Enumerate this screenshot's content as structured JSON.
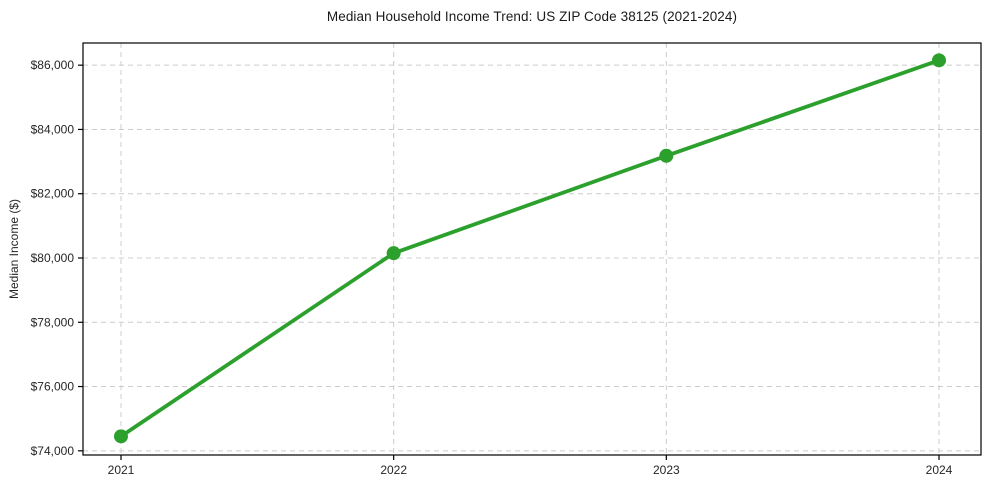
{
  "chart_data": {
    "type": "line",
    "title": "Median Household Income Trend: US ZIP Code 38125 (2021-2024)",
    "xlabel": "",
    "ylabel": "Median Income ($)",
    "categories": [
      "2021",
      "2022",
      "2023",
      "2024"
    ],
    "values": [
      74450,
      80150,
      83180,
      86150
    ],
    "yticks": [
      74000,
      76000,
      78000,
      80000,
      82000,
      84000,
      86000
    ],
    "ytick_labels": [
      "$74,000",
      "$76,000",
      "$78,000",
      "$80,000",
      "$82,000",
      "$84,000",
      "$86,000"
    ],
    "ylim": [
      73870,
      86690
    ],
    "grid": true,
    "grid_style": "dashed",
    "legend": "none",
    "marker": "circle",
    "colors": {
      "line": "#2ca02c",
      "marker": "#2ca02c",
      "grid": "#cccccc",
      "spine": "#000000",
      "tick_text": "#262626",
      "background": "#ffffff"
    }
  }
}
